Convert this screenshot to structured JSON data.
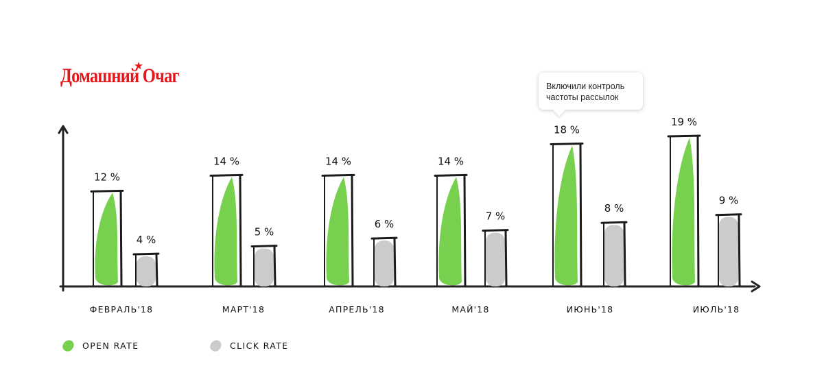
{
  "logo": {
    "text": "Домашний Очаг",
    "color": "#e4171d"
  },
  "callout": {
    "lines": [
      "Включили контроль",
      "частоты рассылок"
    ]
  },
  "legend": {
    "open": {
      "label": "OPEN RATE",
      "color": "#77d14f"
    },
    "click": {
      "label": "CLICK RATE",
      "color": "#cbcbcb"
    }
  },
  "chart_data": {
    "type": "bar",
    "categories": [
      "ФЕВРАЛЬ'18",
      "МАРТ'18",
      "АПРЕЛЬ'18",
      "МАЙ'18",
      "ИЮНЬ'18",
      "ИЮЛЬ'18"
    ],
    "series": [
      {
        "name": "OPEN RATE",
        "values": [
          12,
          14,
          14,
          14,
          18,
          19
        ],
        "labels": [
          "12 %",
          "14 %",
          "14 %",
          "14 %",
          "18 %",
          "19 %"
        ],
        "color": "#77d14f"
      },
      {
        "name": "CLICK RATE",
        "values": [
          4,
          5,
          6,
          7,
          8,
          9
        ],
        "labels": [
          "4 %",
          "5 %",
          "6 %",
          "7 %",
          "8 %",
          "9 %"
        ],
        "color": "#cbcbcb"
      }
    ],
    "ylim": [
      0,
      19
    ],
    "grid": false,
    "legend": "bottom-left"
  }
}
